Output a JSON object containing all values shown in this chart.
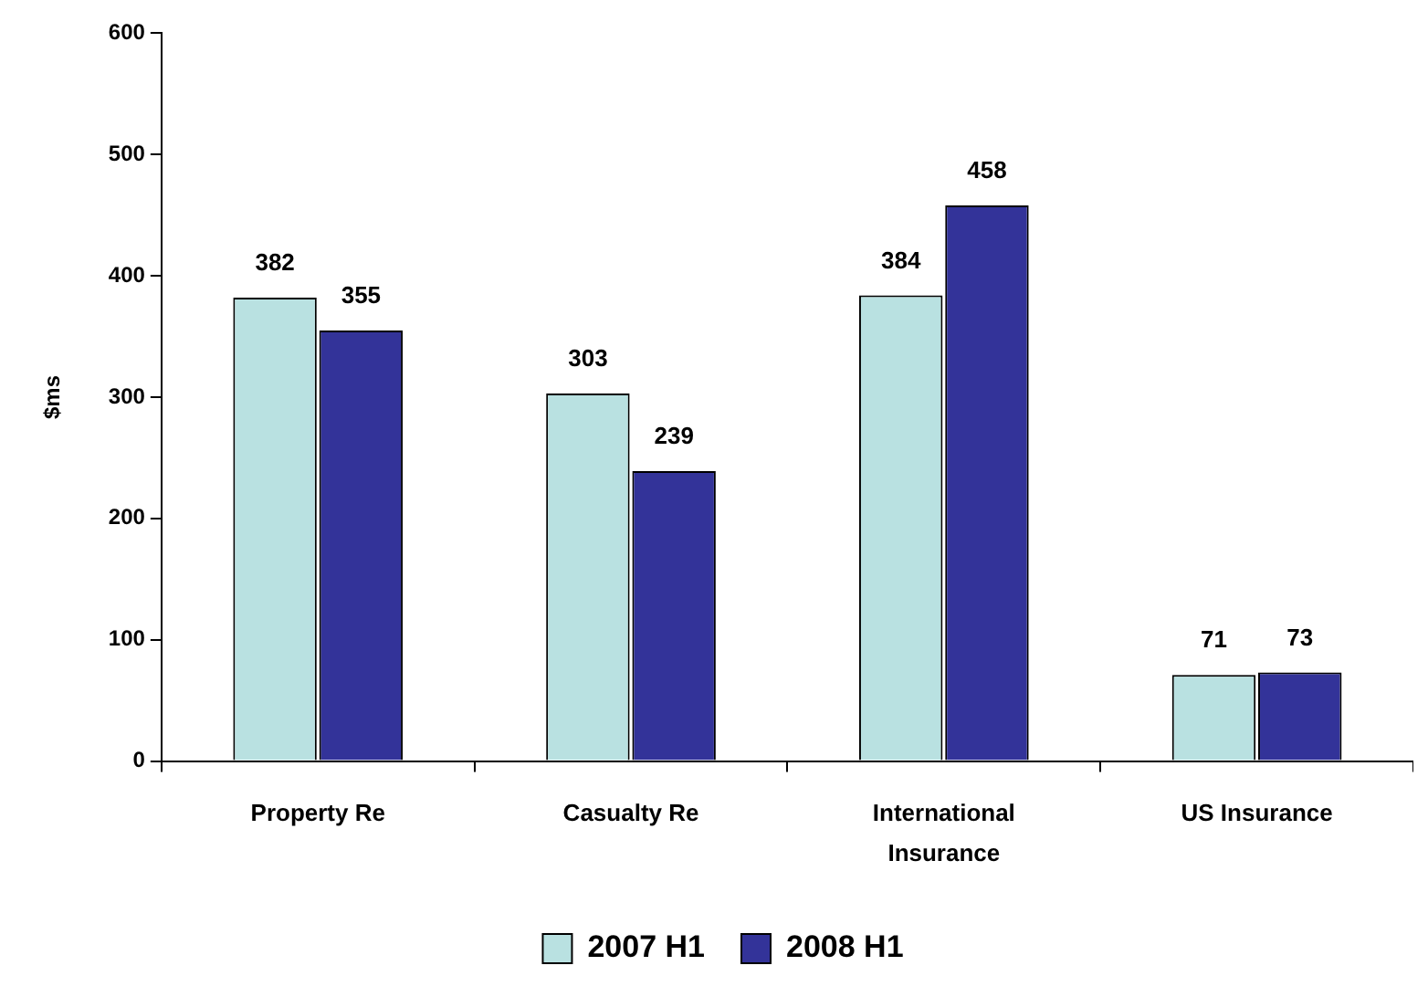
{
  "chart_data": {
    "type": "bar",
    "ylabel": "$ms",
    "categories": [
      "Property Re",
      "Casualty Re",
      "International Insurance",
      "US Insurance"
    ],
    "series": [
      {
        "name": "2007 H1",
        "color": "#b9e1e1",
        "values": [
          382,
          303,
          384,
          71
        ]
      },
      {
        "name": "2008 H1",
        "color": "#333399",
        "values": [
          355,
          239,
          458,
          73
        ]
      }
    ],
    "ylim": [
      0,
      600
    ],
    "yticks": [
      0,
      100,
      200,
      300,
      400,
      500,
      600
    ],
    "grid": false,
    "legend": "bottom",
    "data_labels": true
  }
}
